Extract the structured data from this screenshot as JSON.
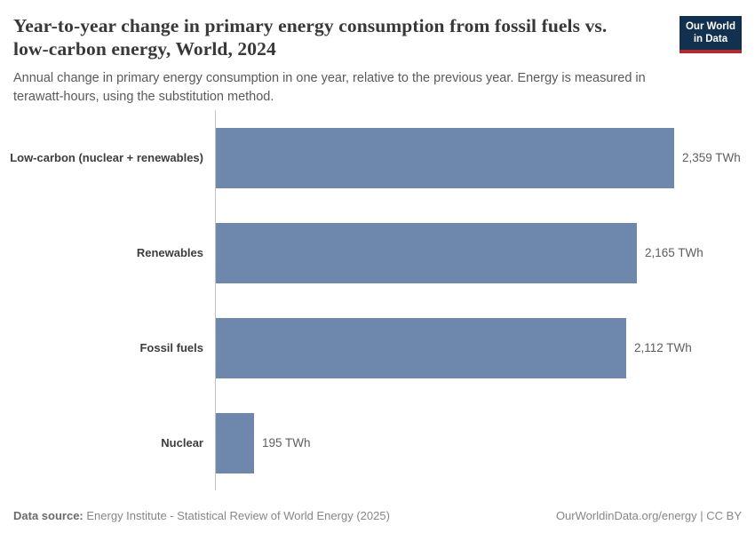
{
  "header": {
    "title": "Year-to-year change in primary energy consumption from fossil fuels vs. low-carbon energy, World, 2024",
    "subtitle": "Annual change in primary energy consumption in one year, relative to the previous year. Energy is measured in terawatt-hours, using the substitution method.",
    "logo": {
      "line1": "Our World",
      "line2": "in Data"
    }
  },
  "chart_data": {
    "type": "bar",
    "orientation": "horizontal",
    "title": "Year-to-year change in primary energy consumption from fossil fuels vs. low-carbon energy, World, 2024",
    "categories": [
      "Low-carbon (nuclear + renewables)",
      "Renewables",
      "Fossil fuels",
      "Nuclear"
    ],
    "values": [
      2359,
      2165,
      2112,
      195
    ],
    "value_labels": [
      "2,359 TWh",
      "2,165 TWh",
      "2,112 TWh",
      "195 TWh"
    ],
    "unit": "TWh",
    "xlabel": "",
    "ylabel": "",
    "xlim": [
      0,
      2359
    ],
    "grid": false,
    "legend": "none",
    "bar_color": "#6e87ad"
  },
  "footer": {
    "source_label": "Data source:",
    "source_text": "Energy Institute - Statistical Review of World Energy (2025)",
    "right_text": "OurWorldinData.org/energy | CC BY"
  },
  "colors": {
    "bar": "#6e87ad",
    "logo_bg": "#12304f",
    "logo_red": "#b7282e",
    "axis": "#c3c3c3"
  }
}
